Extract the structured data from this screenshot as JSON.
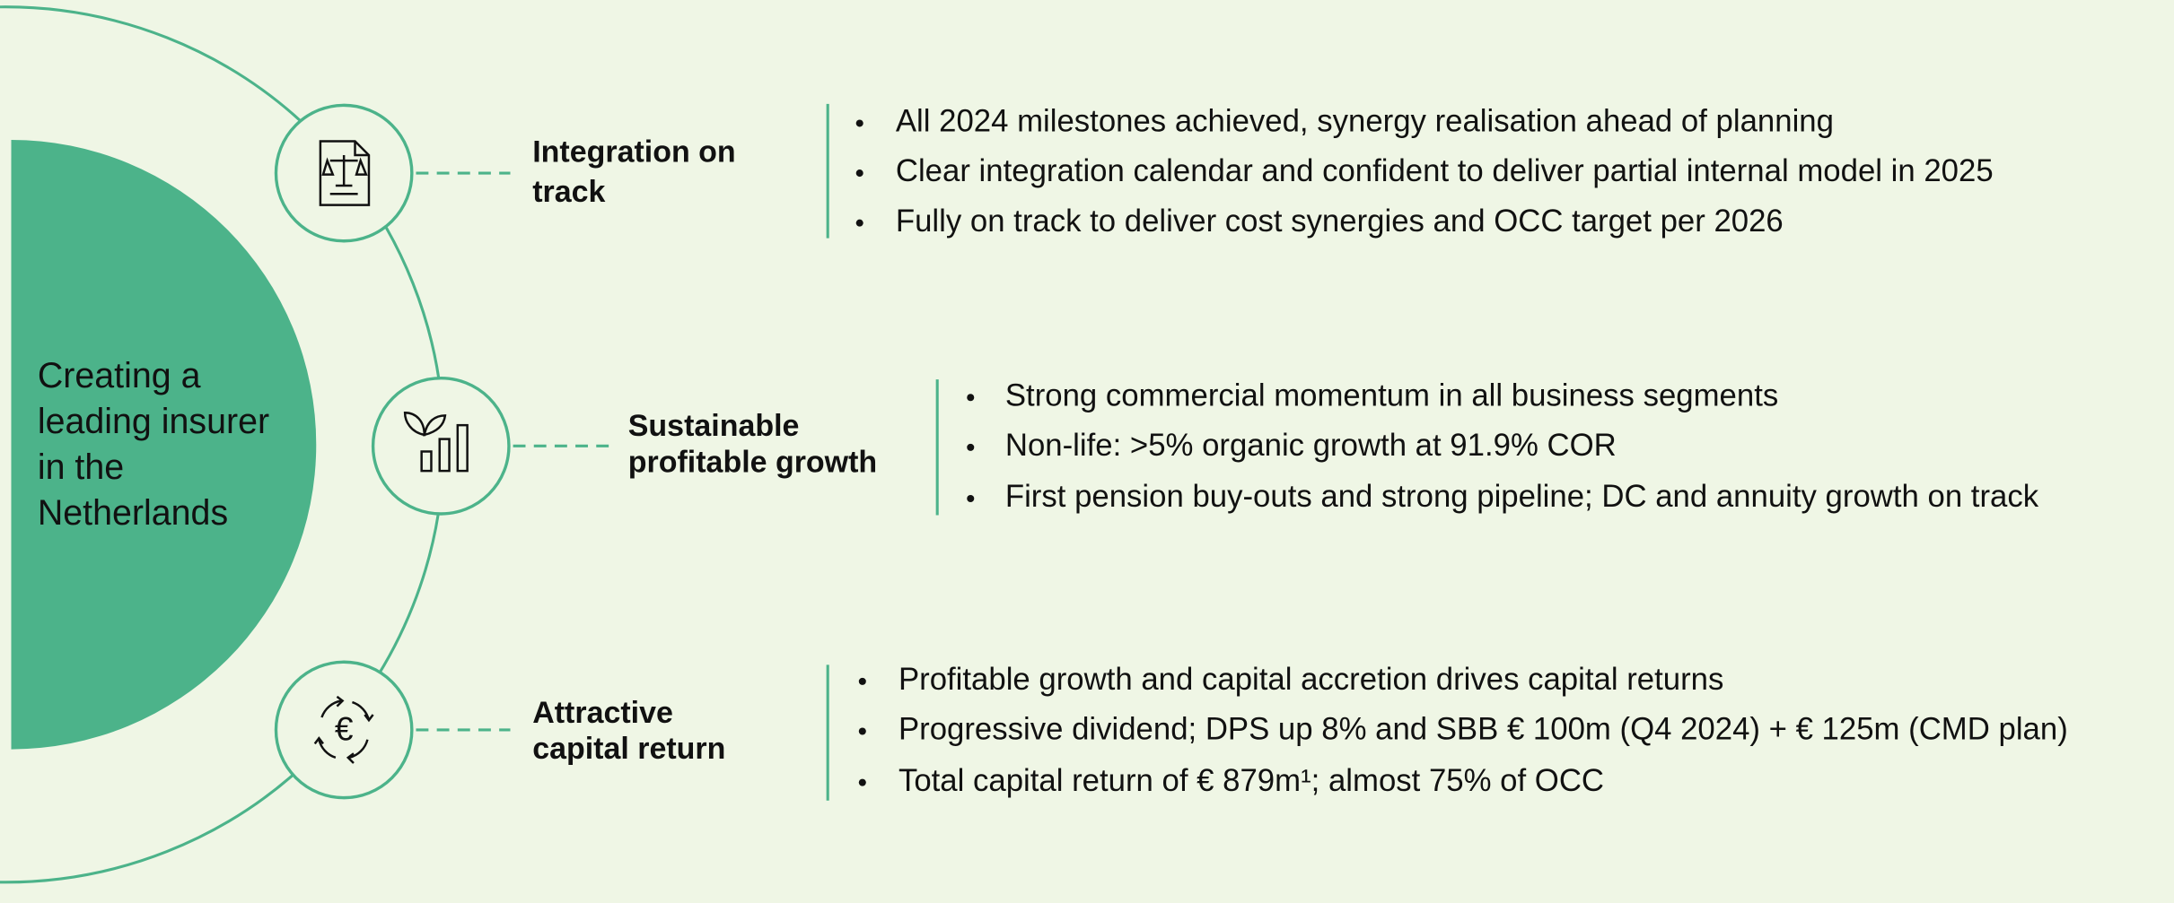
{
  "headline": {
    "lines": [
      "Creating a",
      "leading insurer",
      "in the",
      "Netherlands"
    ]
  },
  "pillars": [
    {
      "title_lines": [
        "Integration on",
        "track"
      ],
      "bullets": [
        "All 2024 milestones achieved, synergy realisation ahead of planning",
        "Clear integration calendar and confident to deliver partial internal model in 2025",
        "Fully on track to deliver cost synergies and OCC target per 2026"
      ]
    },
    {
      "title_lines": [
        "Sustainable",
        "profitable growth"
      ],
      "bullets": [
        "Strong commercial momentum in all business segments",
        "Non-life: >5% organic growth at 91.9% COR",
        "First pension buy-outs and strong pipeline; DC and annuity growth on track"
      ]
    },
    {
      "title_lines": [
        "Attractive",
        "capital return"
      ],
      "bullets": [
        "Profitable growth and capital accretion drives capital returns",
        "Progressive dividend; DPS up 8% and SBB € 100m (Q4 2024) + € 125m (CMD plan)",
        "Total capital return of € 879m¹; almost 75% of OCC"
      ]
    }
  ]
}
